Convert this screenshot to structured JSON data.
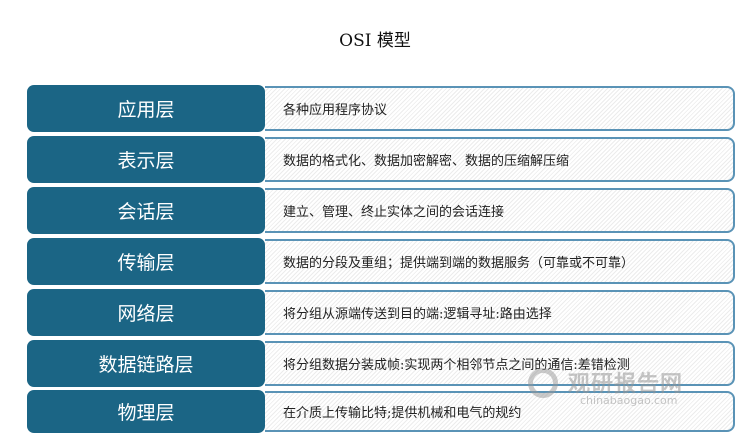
{
  "title": "OSI 模型",
  "layers": [
    {
      "name": "应用层",
      "desc": "各种应用程序协议"
    },
    {
      "name": "表示层",
      "desc": "数据的格式化、数据加密解密、数据的压缩解压缩"
    },
    {
      "name": "会话层",
      "desc": "建立、管理、终止实体之间的会话连接"
    },
    {
      "name": "传输层",
      "desc": "数据的分段及重组；提供端到端的数据服务（可靠或不可靠）"
    },
    {
      "name": "网络层",
      "desc": "将分组从源端传送到目的端:逻辑寻址:路由选择"
    },
    {
      "name": "数据链路层",
      "desc": "将分组数据分装成帧:实现两个相邻节点之间的通信:差错检测"
    },
    {
      "name": "物理层",
      "desc": "在介质上传输比特;提供机械和电气的规约"
    }
  ],
  "watermark": {
    "cn": "观研报告网",
    "en": "chinabaogao.com"
  },
  "colors": {
    "layer_bg": "#1b6585",
    "desc_border": "#5a93b6"
  }
}
